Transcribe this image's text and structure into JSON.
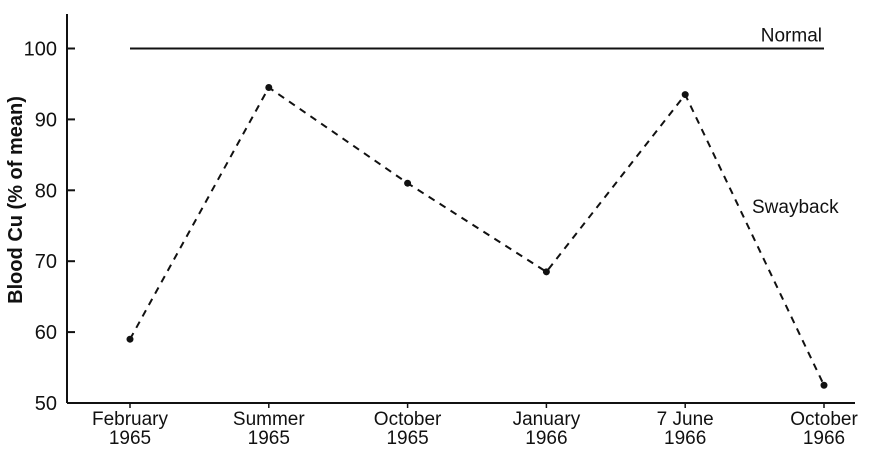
{
  "chart_data": {
    "type": "line",
    "title": "",
    "xlabel": "",
    "ylabel": "Blood Cu (% of mean)",
    "ylim": [
      50,
      105
    ],
    "yticks": [
      50,
      60,
      70,
      80,
      90,
      100
    ],
    "categories": [
      [
        "February",
        "1965"
      ],
      [
        "Summer",
        "1965"
      ],
      [
        "October",
        "1965"
      ],
      [
        "January",
        "1966"
      ],
      [
        "7 June",
        "1966"
      ],
      [
        "October",
        "1966"
      ]
    ],
    "series": [
      {
        "name": "Normal",
        "style": "solid",
        "values": [
          100,
          100,
          100,
          100,
          100,
          100
        ]
      },
      {
        "name": "Swayback",
        "style": "dashed",
        "values": [
          59,
          94.5,
          81,
          68.5,
          93.5,
          52.5
        ]
      }
    ],
    "grid": false,
    "legend": "inline labels",
    "colors": {
      "line": "#111111",
      "background": "#ffffff"
    }
  }
}
